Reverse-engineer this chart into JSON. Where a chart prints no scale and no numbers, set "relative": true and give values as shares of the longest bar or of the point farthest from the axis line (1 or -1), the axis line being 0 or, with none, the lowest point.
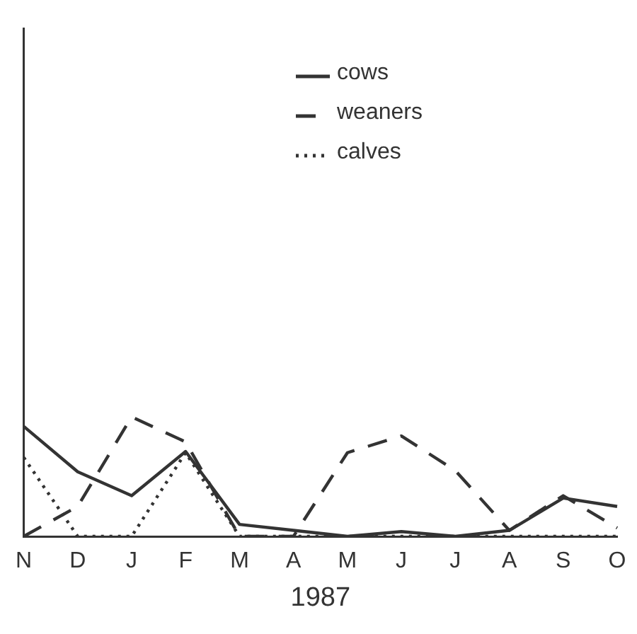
{
  "chart_data": {
    "type": "line",
    "xlabel": "1987",
    "relative": true,
    "legend": "top",
    "grid": false,
    "categories": [
      "N",
      "D",
      "J",
      "F",
      "M",
      "A",
      "M",
      "J",
      "J",
      "A",
      "S",
      "O"
    ],
    "series": [
      {
        "name": "cows",
        "color": "#333333",
        "line_style": "solid",
        "values": [
          0.92,
          0.54,
          0.34,
          0.71,
          0.1,
          0.05,
          0,
          0.04,
          0,
          0.05,
          0.32,
          0.25
        ]
      },
      {
        "name": "weaners",
        "color": "#333333",
        "line_style": "dashed",
        "values": [
          0,
          0.25,
          1,
          0.79,
          0,
          0,
          0.7,
          0.84,
          0.55,
          0.05,
          0.34,
          0.07
        ]
      },
      {
        "name": "calves",
        "color": "#333333",
        "line_style": "dotted",
        "values": [
          0.66,
          0,
          0,
          0.7,
          0,
          0,
          0,
          0,
          0,
          0,
          0,
          0
        ]
      }
    ]
  }
}
